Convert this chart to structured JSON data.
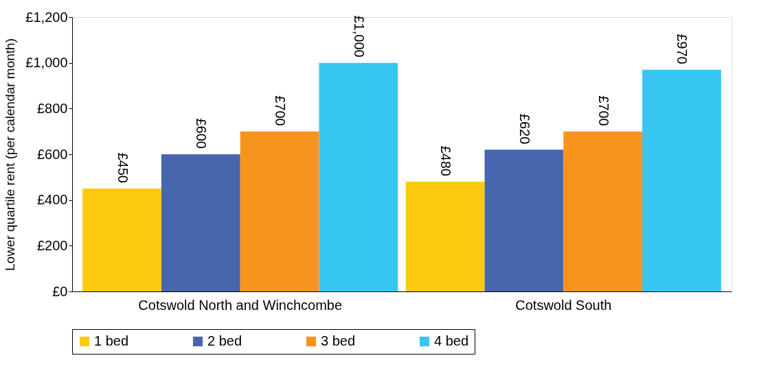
{
  "chart_data": {
    "type": "bar",
    "ylabel": "Lower quartile rent (per calendar month)",
    "categories": [
      "Cotswold North and Winchcombe",
      "Cotswold South"
    ],
    "series": [
      {
        "name": "1 bed",
        "color": "#fccb0f",
        "values": [
          450,
          480
        ],
        "value_labels": [
          "£450",
          "£480"
        ]
      },
      {
        "name": "2 bed",
        "color": "#4866ae",
        "values": [
          600,
          620
        ],
        "value_labels": [
          "£600",
          "£620"
        ]
      },
      {
        "name": "3 bed",
        "color": "#f7941d",
        "values": [
          700,
          700
        ],
        "value_labels": [
          "£700",
          "£700"
        ]
      },
      {
        "name": "4 bed",
        "color": "#37c5f2",
        "values": [
          1000,
          970
        ],
        "value_labels": [
          "£1,000",
          "£970"
        ]
      }
    ],
    "ylim": [
      0,
      1200
    ],
    "yticks": [
      {
        "value": 0,
        "label": "£0"
      },
      {
        "value": 200,
        "label": "£200"
      },
      {
        "value": 400,
        "label": "£400"
      },
      {
        "value": 600,
        "label": "£600"
      },
      {
        "value": 800,
        "label": "£800"
      },
      {
        "value": 1000,
        "label": "£1,000"
      },
      {
        "value": 1200,
        "label": "£1,200"
      }
    ],
    "grid": false,
    "legend": "bottom"
  }
}
